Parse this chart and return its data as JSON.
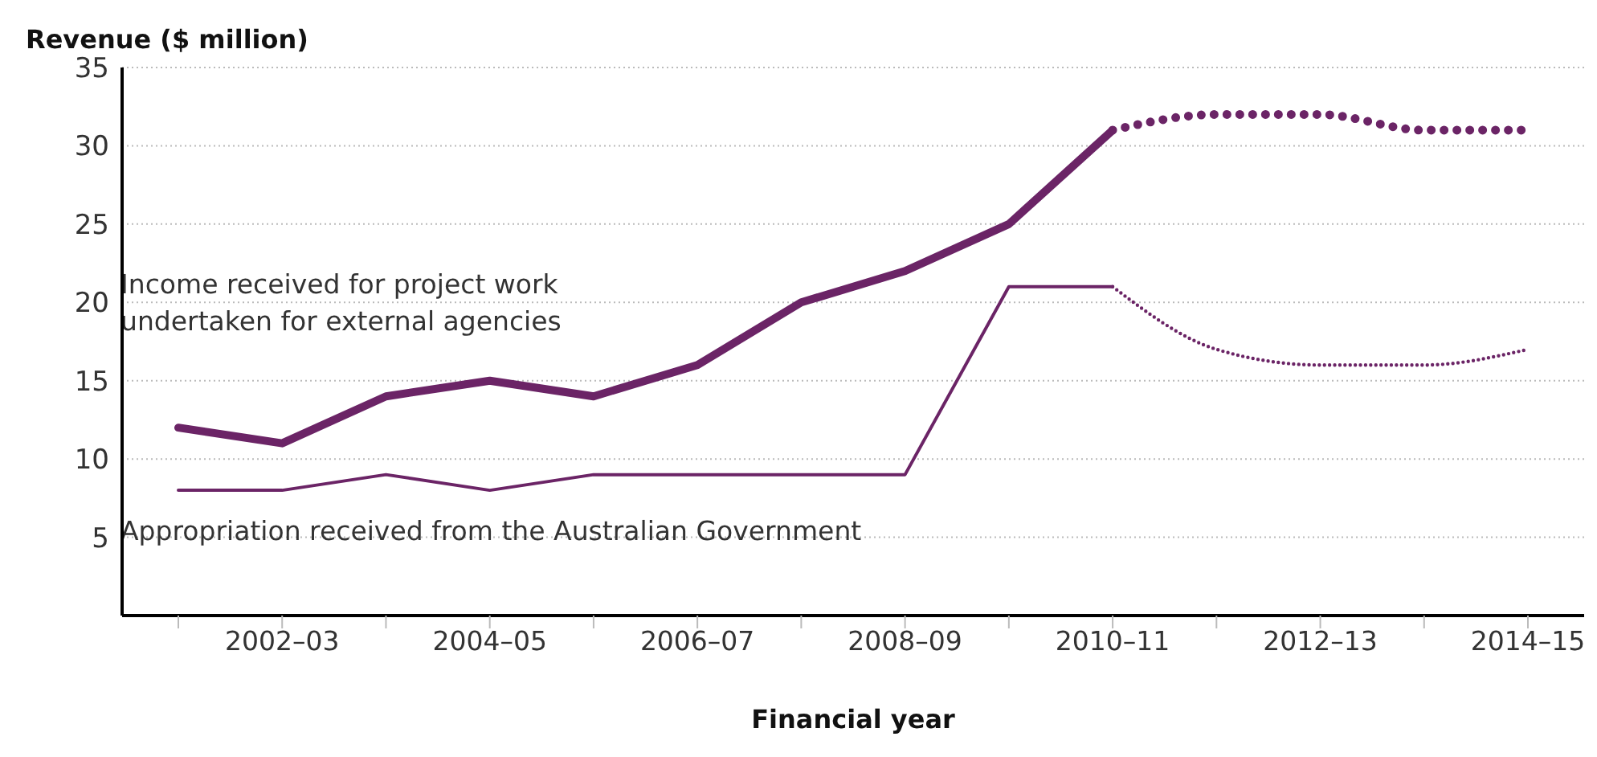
{
  "chart_data": {
    "type": "line",
    "ylabel": "Revenue ($ million)",
    "xlabel": "Financial year",
    "categories": [
      null,
      "2002–03",
      null,
      "2004–05",
      null,
      "2006–07",
      null,
      "2008–09",
      null,
      "2010–11",
      null,
      "2012–13",
      null,
      "2014–15"
    ],
    "series": [
      {
        "name": "Income received for project work undertaken for external agencies",
        "color": "#6b2466",
        "line_style": "solid",
        "values": [
          12,
          11,
          14,
          15,
          14,
          16,
          20,
          22,
          25,
          31,
          null,
          null,
          null,
          null
        ]
      },
      {
        "color": "#6b2466",
        "line_style": "dotted",
        "values": [
          null,
          null,
          null,
          null,
          null,
          null,
          null,
          null,
          null,
          31,
          32,
          32,
          31,
          31
        ]
      },
      {
        "name": "Appropriation received from the Australian Government",
        "color": "#6b2466",
        "line_style": "solid",
        "values": [
          8,
          8,
          9,
          8,
          9,
          9,
          9,
          9,
          21,
          21,
          null,
          null,
          null,
          null
        ]
      },
      {
        "color": "#6b2466",
        "line_style": "dotted",
        "values": [
          null,
          null,
          null,
          null,
          null,
          null,
          null,
          null,
          null,
          21,
          17,
          16,
          16,
          17
        ]
      }
    ],
    "ylim": [
      0,
      35
    ],
    "yticks": [
      5,
      10,
      15,
      20,
      25,
      30,
      35
    ],
    "grid": "y",
    "marker": "none"
  }
}
